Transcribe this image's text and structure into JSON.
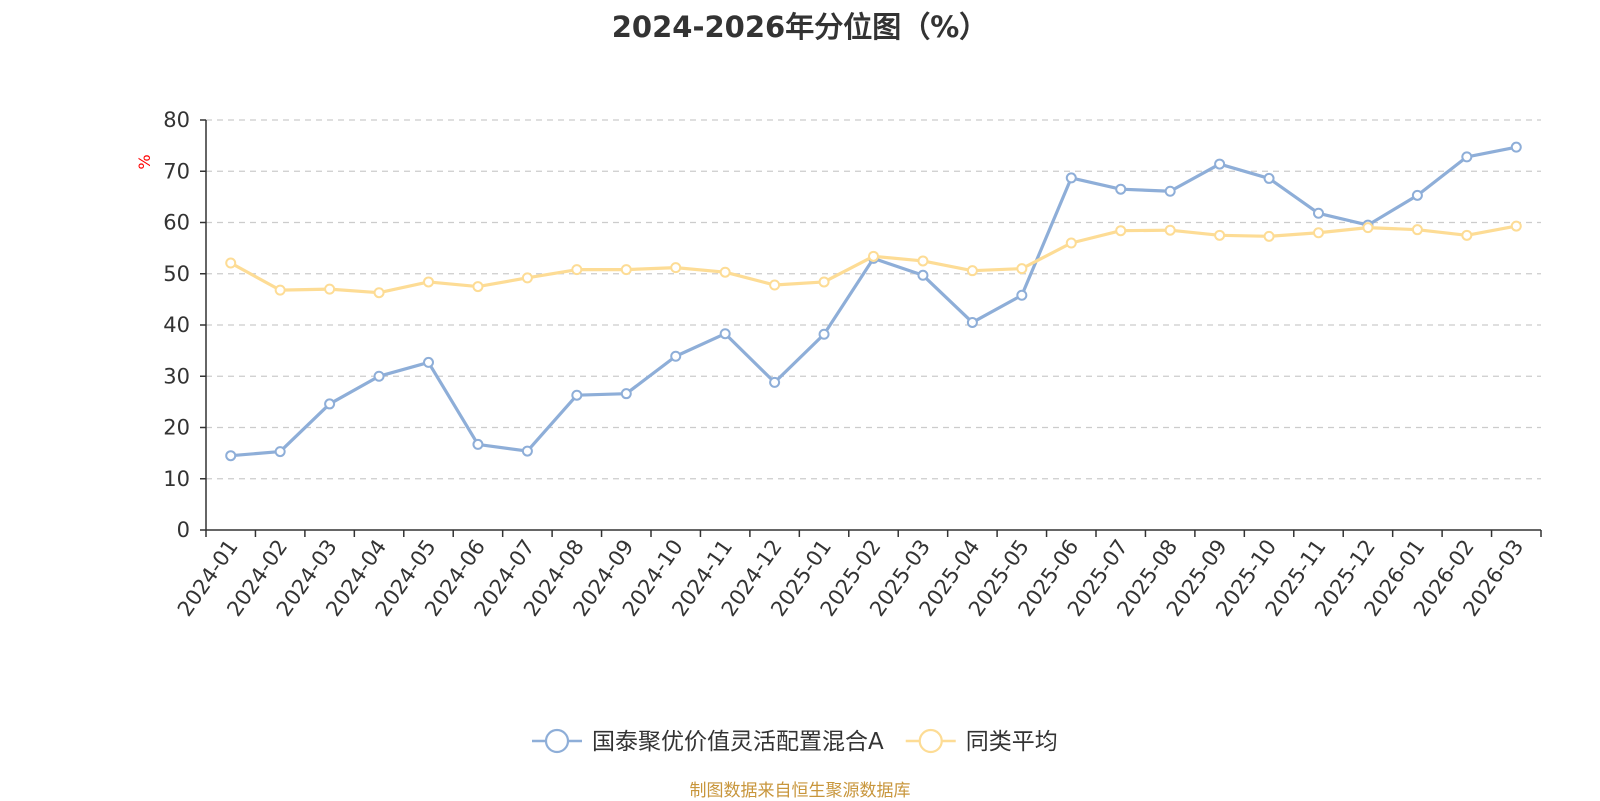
{
  "chart_data": {
    "type": "line",
    "title": "2024-2026年分位图（%）",
    "ylabel": "%",
    "ylim": [
      0,
      80
    ],
    "yticks": [
      0,
      10,
      20,
      30,
      40,
      50,
      60,
      70,
      80
    ],
    "grid": true,
    "legend_position": "bottom-center",
    "categories": [
      "2024-01",
      "2024-02",
      "2024-03",
      "2024-04",
      "2024-05",
      "2024-06",
      "2024-07",
      "2024-08",
      "2024-09",
      "2024-10",
      "2024-11",
      "2024-12",
      "2025-01",
      "2025-02",
      "2025-03",
      "2025-04",
      "2025-05",
      "2025-06",
      "2025-07",
      "2025-08",
      "2025-09",
      "2025-10",
      "2025-11",
      "2025-12",
      "2026-01",
      "2026-02",
      "2026-03"
    ],
    "series": [
      {
        "name": "国泰聚优价值灵活配置混合A",
        "color": "#8eaed8",
        "values": [
          14.5,
          15.3,
          24.6,
          30.0,
          32.7,
          16.7,
          15.4,
          26.3,
          26.6,
          33.9,
          38.3,
          28.8,
          38.2,
          53.0,
          49.7,
          40.5,
          45.8,
          68.7,
          66.5,
          66.1,
          71.4,
          68.6,
          61.8,
          59.5,
          65.3,
          72.8,
          74.7
        ]
      },
      {
        "name": "同类平均",
        "color": "#fddc95",
        "values": [
          52.1,
          46.8,
          47.0,
          46.3,
          48.4,
          47.5,
          49.2,
          50.8,
          50.8,
          51.2,
          50.3,
          47.8,
          48.4,
          53.4,
          52.5,
          50.6,
          51.0,
          56.0,
          58.4,
          58.5,
          57.5,
          57.3,
          58.0,
          59.0,
          58.6,
          57.5,
          59.3
        ]
      }
    ]
  },
  "footer": {
    "source": "制图数据来自恒生聚源数据库",
    "source_color": "#c8963c"
  },
  "colors": {
    "ylabel": "#ff0000",
    "axis": "#333333",
    "grid": "#cccccc"
  }
}
